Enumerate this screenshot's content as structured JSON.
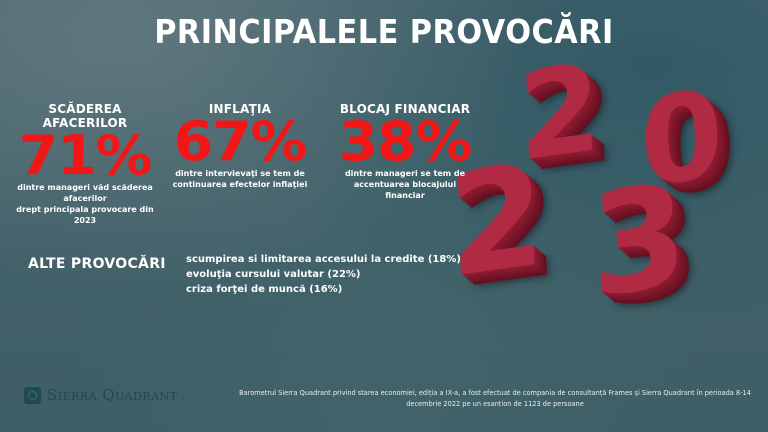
{
  "header": {
    "title": "PRINCIPALELE PROVOCĂRI"
  },
  "artwork": {
    "digits": [
      "2",
      "0",
      "2",
      "3"
    ],
    "year": "2023"
  },
  "stats": [
    {
      "heading": "SCĂDEREA AFACERILOR",
      "percent": "71%",
      "desc_line1": "dintre manageri văd scăderea afacerilor",
      "desc_line2": "drept principala provocare din 2023"
    },
    {
      "heading": "INFLAŢIA",
      "percent": "67%",
      "desc_line1": "dintre intervievaţi se tem de",
      "desc_line2": "continuarea efectelor inflaţiei"
    },
    {
      "heading": "BLOCAJ FINANCIAR",
      "percent": "38%",
      "desc_line1": "dintre manageri se tem de",
      "desc_line2": "accentuarea blocajului financiar"
    }
  ],
  "other": {
    "title": "ALTE PROVOCĂRI",
    "items": [
      "scumpirea si limitarea accesului la credite (18%)",
      "evoluţia cursului valutar (22%)",
      "criza forţei de muncă (16%)"
    ]
  },
  "footer": {
    "logo_text": "Sierra Quadrant",
    "note_line1": "Barometrul Sierra Quadrant privind starea economiei, ediția a IX-a, a fost efectuat de compania de consultanță Frames și Sierra Quadrant în perioada 8-14",
    "note_line2": "decembrie 2022 pe un esantion de 1123 de persoane"
  },
  "colors": {
    "accent_red": "#f31616",
    "background": "#46646c",
    "digit_red": "#b02a44",
    "logo": "#1d4a55"
  }
}
